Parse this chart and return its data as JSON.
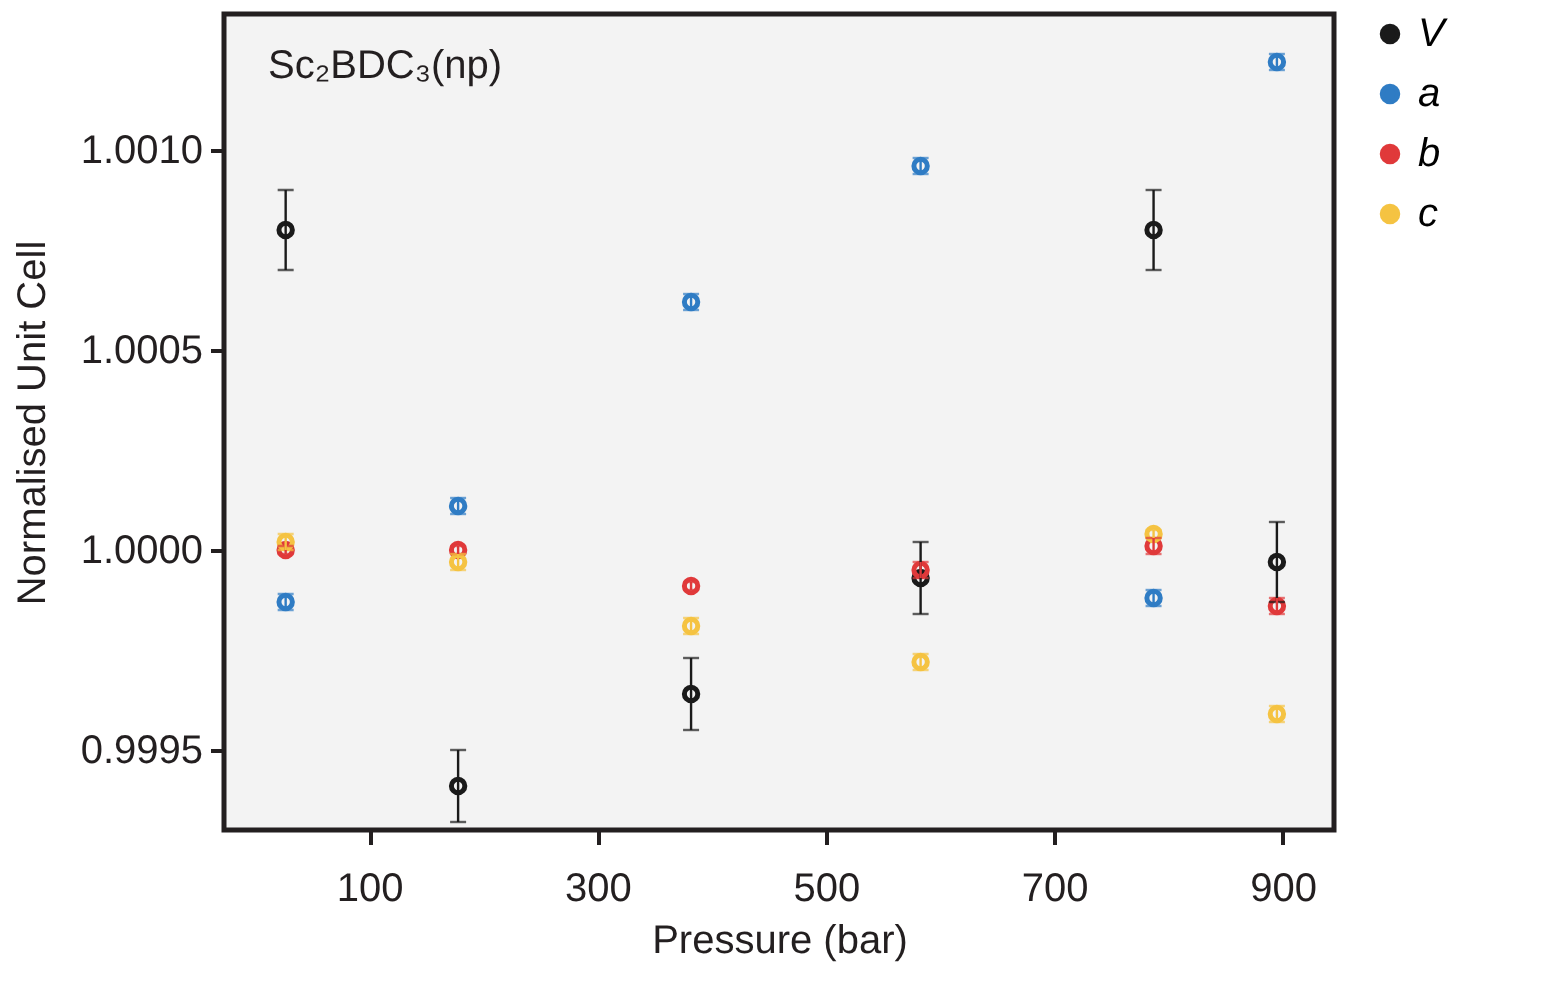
{
  "chart_data": {
    "type": "scatter",
    "title": "Sc₂BDC₃(np)",
    "xlabel": "Pressure (bar)",
    "ylabel": "Normalised Unit Cell",
    "x": [
      27,
      178,
      382,
      583,
      787,
      895
    ],
    "series": [
      {
        "name": "V",
        "color": "#1a1a1a",
        "values": [
          1.0008,
          0.99941,
          0.99964,
          0.99993,
          1.0008,
          0.99997
        ],
        "errors": [
          0.0001,
          9e-05,
          9e-05,
          9e-05,
          0.0001,
          0.0001
        ]
      },
      {
        "name": "a",
        "color": "#2f7cc4",
        "values": [
          0.99987,
          1.00011,
          1.00062,
          1.00096,
          0.99988,
          1.00122
        ],
        "errors": [
          2e-05,
          2e-05,
          2e-05,
          2e-05,
          2e-05,
          2e-05
        ]
      },
      {
        "name": "b",
        "color": "#e0393a",
        "values": [
          1.0,
          1.0,
          0.99991,
          0.99995,
          1.00001,
          0.99986
        ],
        "errors": [
          1e-05,
          1e-05,
          1e-05,
          2e-05,
          2e-05,
          2e-05
        ]
      },
      {
        "name": "c",
        "color": "#f5c342",
        "values": [
          1.00002,
          0.99997,
          0.99981,
          0.99972,
          1.00004,
          0.99959
        ],
        "errors": [
          2e-05,
          2e-05,
          2e-05,
          2e-05,
          1e-05,
          2e-05
        ]
      }
    ],
    "xlim": [
      -27,
      945
    ],
    "xticks": [
      100,
      300,
      500,
      700,
      900
    ],
    "ylim": [
      0.9993,
      1.00134
    ],
    "yticks": [
      0.9995,
      {
        "value": 1.0,
        "label": "1.0000"
      },
      1.0005,
      {
        "value": 1.001,
        "label": "1.0010"
      }
    ],
    "legend": "right",
    "marker": "circle"
  }
}
